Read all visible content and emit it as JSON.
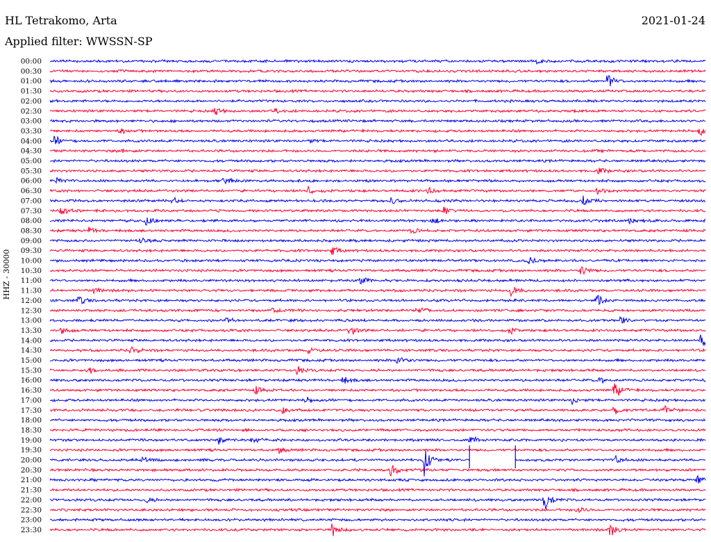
{
  "header": {
    "station": "HL Tetrakomo, Arta",
    "date": "2021-01-24",
    "filter": "Applied filter: WWSSN-SP"
  },
  "colors": {
    "trace_a": "#0000ee",
    "trace_b": "#ff0033",
    "background": "#ffffff"
  },
  "chart_data": {
    "type": "line",
    "title": "HL Tetrakomo, Arta",
    "subtitle": "Applied filter: WWSSN-SP",
    "ylabel": "HHZ - 30000",
    "xlabel": "",
    "y_tick_labels": [
      "00:00",
      "00:30",
      "01:00",
      "01:30",
      "02:00",
      "02:30",
      "03:00",
      "03:30",
      "04:00",
      "04:30",
      "05:00",
      "05:30",
      "06:00",
      "06:30",
      "07:00",
      "07:30",
      "08:00",
      "08:30",
      "09:00",
      "09:30",
      "10:00",
      "10:30",
      "11:00",
      "11:30",
      "12:00",
      "12:30",
      "13:00",
      "13:30",
      "14:00",
      "14:30",
      "15:00",
      "15:30",
      "16:00",
      "16:30",
      "17:00",
      "17:30",
      "18:00",
      "18:30",
      "19:00",
      "19:30",
      "20:00",
      "20:30",
      "21:00",
      "21:30",
      "22:00",
      "22:30",
      "23:00",
      "23:30"
    ],
    "row_colors": [
      "trace_a",
      "trace_b"
    ],
    "x_range_minutes": [
      0,
      30
    ],
    "grid": false,
    "legend": "none",
    "events": [
      {
        "row": "00:00",
        "minute": 22.3,
        "amp": 0.6
      },
      {
        "row": "01:00",
        "minute": 25.5,
        "amp": 2.3
      },
      {
        "row": "02:30",
        "minute": 7.5,
        "amp": 1.2
      },
      {
        "row": "02:30",
        "minute": 10.3,
        "amp": 0.6
      },
      {
        "row": "03:30",
        "minute": 3.2,
        "amp": 0.8
      },
      {
        "row": "03:30",
        "minute": 29.7,
        "amp": 1.2
      },
      {
        "row": "04:00",
        "minute": 0.2,
        "amp": 1.1
      },
      {
        "row": "04:00",
        "minute": 11.8,
        "amp": 0.5
      },
      {
        "row": "04:30",
        "minute": 3.3,
        "amp": 0.5
      },
      {
        "row": "05:30",
        "minute": 25.1,
        "amp": 0.9
      },
      {
        "row": "06:00",
        "minute": 0.3,
        "amp": 0.8
      },
      {
        "row": "06:00",
        "minute": 8.0,
        "amp": 0.7
      },
      {
        "row": "06:00",
        "minute": 7.9,
        "amp": 0.5
      },
      {
        "row": "06:30",
        "minute": 11.8,
        "amp": 0.9
      },
      {
        "row": "06:30",
        "minute": 17.3,
        "amp": 0.9
      },
      {
        "row": "06:30",
        "minute": 25.0,
        "amp": 0.7
      },
      {
        "row": "07:00",
        "minute": 5.6,
        "amp": 0.8
      },
      {
        "row": "07:00",
        "minute": 15.6,
        "amp": 1.0
      },
      {
        "row": "07:00",
        "minute": 24.4,
        "amp": 1.2
      },
      {
        "row": "07:30",
        "minute": 0.5,
        "amp": 1.2
      },
      {
        "row": "07:30",
        "minute": 18.0,
        "amp": 1.1
      },
      {
        "row": "08:00",
        "minute": 4.4,
        "amp": 1.1
      },
      {
        "row": "08:00",
        "minute": 17.5,
        "amp": 0.9
      },
      {
        "row": "08:00",
        "minute": 26.5,
        "amp": 1.0
      },
      {
        "row": "08:30",
        "minute": 1.8,
        "amp": 1.1
      },
      {
        "row": "08:30",
        "minute": 16.5,
        "amp": 0.8
      },
      {
        "row": "09:00",
        "minute": 4.1,
        "amp": 0.8
      },
      {
        "row": "09:30",
        "minute": 12.9,
        "amp": 1.2
      },
      {
        "row": "10:00",
        "minute": 21.9,
        "amp": 1.2
      },
      {
        "row": "10:30",
        "minute": 24.3,
        "amp": 1.4
      },
      {
        "row": "11:00",
        "minute": 14.2,
        "amp": 1.1
      },
      {
        "row": "11:30",
        "minute": 2.0,
        "amp": 0.8
      },
      {
        "row": "11:30",
        "minute": 21.1,
        "amp": 1.6
      },
      {
        "row": "12:00",
        "minute": 1.3,
        "amp": 1.1
      },
      {
        "row": "12:00",
        "minute": 25.0,
        "amp": 1.7
      },
      {
        "row": "12:30",
        "minute": 10.1,
        "amp": 1.0
      },
      {
        "row": "12:30",
        "minute": 16.8,
        "amp": 1.4
      },
      {
        "row": "13:00",
        "minute": 8.0,
        "amp": 1.1
      },
      {
        "row": "13:00",
        "minute": 26.1,
        "amp": 1.1
      },
      {
        "row": "13:30",
        "minute": 0.5,
        "amp": 1.0
      },
      {
        "row": "13:30",
        "minute": 13.7,
        "amp": 1.6
      },
      {
        "row": "13:30",
        "minute": 21.0,
        "amp": 1.0
      },
      {
        "row": "14:00",
        "minute": 29.8,
        "amp": 2.2
      },
      {
        "row": "14:30",
        "minute": 3.7,
        "amp": 1.1
      },
      {
        "row": "14:30",
        "minute": 11.8,
        "amp": 1.1
      },
      {
        "row": "15:00",
        "minute": 15.9,
        "amp": 1.7
      },
      {
        "row": "15:30",
        "minute": 1.7,
        "amp": 0.9
      },
      {
        "row": "15:30",
        "minute": 11.3,
        "amp": 1.1
      },
      {
        "row": "16:00",
        "minute": 13.4,
        "amp": 1.2
      },
      {
        "row": "16:00",
        "minute": 25.1,
        "amp": 1.0
      },
      {
        "row": "16:30",
        "minute": 9.4,
        "amp": 1.0
      },
      {
        "row": "16:30",
        "minute": 25.8,
        "amp": 2.4
      },
      {
        "row": "17:00",
        "minute": 11.7,
        "amp": 0.9
      },
      {
        "row": "17:00",
        "minute": 23.9,
        "amp": 0.8
      },
      {
        "row": "17:30",
        "minute": 10.6,
        "amp": 1.0
      },
      {
        "row": "17:30",
        "minute": 25.8,
        "amp": 1.0
      },
      {
        "row": "17:30",
        "minute": 28.1,
        "amp": 1.2
      },
      {
        "row": "19:00",
        "minute": 7.7,
        "amp": 0.9
      },
      {
        "row": "19:00",
        "minute": 9.2,
        "amp": 0.8
      },
      {
        "row": "19:00",
        "minute": 19.2,
        "amp": 1.3
      },
      {
        "row": "19:30",
        "minute": 10.5,
        "amp": 0.9
      },
      {
        "row": "20:00",
        "minute": 4.2,
        "amp": 0.8
      },
      {
        "row": "20:00",
        "minute": 17.1,
        "amp": 4.3
      },
      {
        "row": "20:00",
        "minute": 25.9,
        "amp": 1.1
      },
      {
        "row": "20:30",
        "minute": 15.6,
        "amp": 1.9
      },
      {
        "row": "21:00",
        "minute": 29.6,
        "amp": 1.2
      },
      {
        "row": "22:00",
        "minute": 4.4,
        "amp": 0.8
      },
      {
        "row": "22:00",
        "minute": 22.6,
        "amp": 2.8
      },
      {
        "row": "22:30",
        "minute": 24.1,
        "amp": 1.0
      },
      {
        "row": "23:30",
        "minute": 12.9,
        "amp": 1.8
      },
      {
        "row": "23:30",
        "minute": 25.6,
        "amp": 2.4
      }
    ],
    "data_gaps": [
      {
        "row": "20:00",
        "minute_start": 19.2,
        "minute_end": 21.3
      }
    ]
  }
}
